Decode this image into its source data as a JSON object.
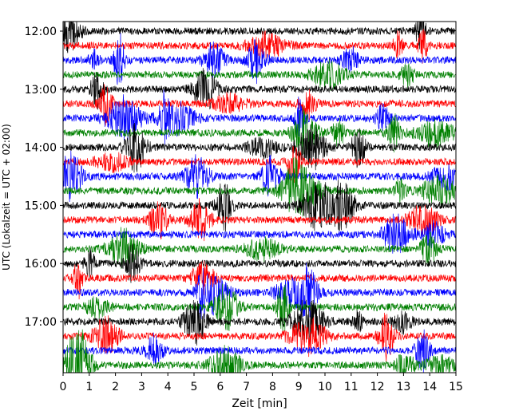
{
  "chart_data": {
    "type": "line",
    "subtype": "helicorder",
    "xlabel": "Zeit  [min]",
    "ylabel": "UTC (Lokalzeit = UTC + 02:00)",
    "xlim": [
      0,
      15
    ],
    "x_ticks": [
      "0",
      "1",
      "2",
      "3",
      "4",
      "5",
      "6",
      "7",
      "8",
      "9",
      "10",
      "11",
      "12",
      "13",
      "14",
      "15"
    ],
    "y_ticks": [
      "12:00",
      "13:00",
      "14:00",
      "15:00",
      "16:00",
      "17:00"
    ],
    "trace_interval_min": 15,
    "trace_count": 24,
    "trace_colors": [
      "#000000",
      "#ff0000",
      "#0000ff",
      "#008000"
    ],
    "grid": false
  }
}
